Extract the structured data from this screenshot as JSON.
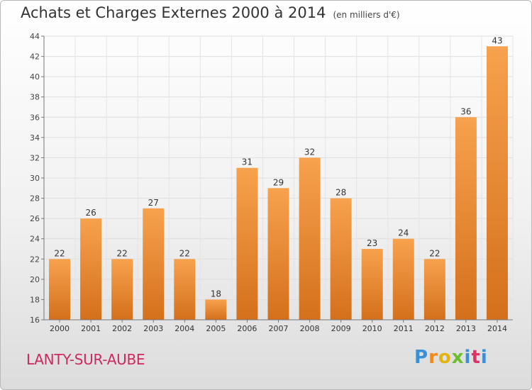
{
  "header": {
    "title": "Achats et Charges Externes 2000 à 2014",
    "unit": "(en milliers d'€)"
  },
  "footer": {
    "commune": "LANTY-SUR-AUBE",
    "logo_text": "Proxiti",
    "logo_letters": [
      "P",
      "r",
      "o",
      "x",
      "i",
      "t",
      "i"
    ],
    "logo_colors": [
      "#3a8fd6",
      "#f08a1c",
      "#e3b50c",
      "#6cbf2a",
      "#3a8fd6",
      "#e0306a",
      "#3a8fd6"
    ]
  },
  "chart_data": {
    "type": "bar",
    "categories": [
      "2000",
      "2001",
      "2002",
      "2003",
      "2004",
      "2005",
      "2006",
      "2007",
      "2008",
      "2009",
      "2010",
      "2011",
      "2012",
      "2013",
      "2014"
    ],
    "values": [
      22,
      26,
      22,
      27,
      22,
      18,
      31,
      29,
      32,
      28,
      23,
      24,
      22,
      36,
      43
    ],
    "title": "Achats et Charges Externes 2000 à 2014",
    "subtitle": "(en milliers d'€)",
    "ylim": [
      16,
      44
    ],
    "yticks": [
      16,
      18,
      20,
      22,
      24,
      26,
      28,
      30,
      32,
      34,
      36,
      38,
      40,
      42,
      44
    ],
    "grid": true,
    "bar_color_light": "#f7a24e",
    "bar_color_dark": "#d4701c"
  }
}
